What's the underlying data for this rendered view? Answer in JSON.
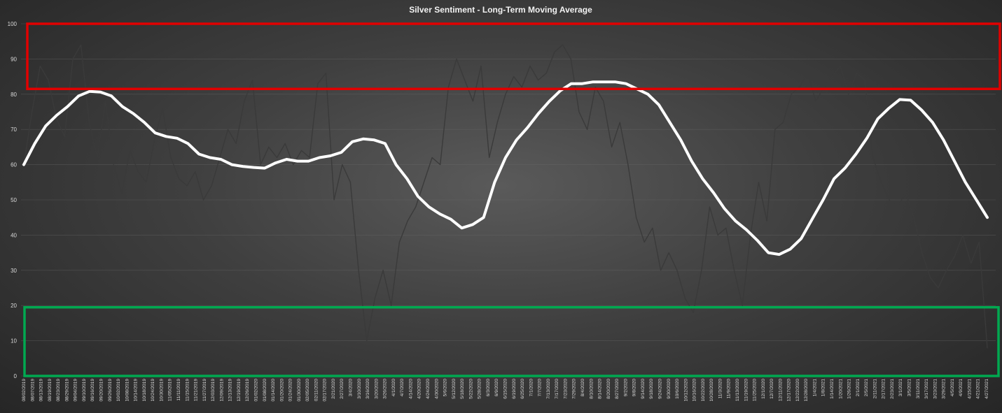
{
  "chart_data": {
    "type": "line",
    "title": "Silver Sentiment - Long-Term Moving Average",
    "xlabel": "",
    "ylabel": "",
    "ylim": [
      0,
      100
    ],
    "yticks": [
      0,
      10,
      20,
      30,
      40,
      50,
      60,
      70,
      80,
      90,
      100
    ],
    "grid": true,
    "legend": "none",
    "x_tick_labels": [
      "08/02/2019",
      "08/07/2019",
      "08/13/2019",
      "08/19/2019",
      "08/23/2019",
      "08/29/2019",
      "09/04/2019",
      "09/10/2019",
      "09/16/2019",
      "09/20/2019",
      "09/26/2019",
      "10/02/2019",
      "10/08/2019",
      "10/14/2019",
      "10/18/2019",
      "10/24/2019",
      "10/30/2019",
      "11/05/2019",
      "11/11/2019",
      "11/15/2019",
      "11/21/2019",
      "11/27/2019",
      "12/03/2019",
      "12/09/2019",
      "12/13/2019",
      "12/19/2019",
      "12/26/2019",
      "01/02/2020",
      "01/08/2020",
      "01/14/2020",
      "01/20/2020",
      "01/24/2020",
      "01/30/2020",
      "02/05/2020",
      "02/11/2020",
      "02/17/2020",
      "2/21/2020",
      "2/27/2020",
      "3/4/2020",
      "3/10/2020",
      "3/16/2020",
      "3/20/2020",
      "3/26/2020",
      "4/1/2020",
      "4/7/2020",
      "4/14/2020",
      "4/20/2020",
      "4/24/2020",
      "4/30/2020",
      "5/6/2020",
      "5/12/2020",
      "5/18/2020",
      "5/22/2020",
      "5/28/2020",
      "6/3/2020",
      "6/9/2020",
      "6/15/2020",
      "6/19/2020",
      "6/25/2020",
      "7/1/2020",
      "7/7/2020",
      "7/13/2020",
      "7/17/2020",
      "7/23/2020",
      "7/29/2020",
      "8/4/2020",
      "8/10/2020",
      "8/14/2020",
      "8/20/2020",
      "8/27/2020",
      "9/2/2020",
      "9/8/2020",
      "9/14/2020",
      "9/18/2020",
      "9/24/2020",
      "9/30/2020",
      "10/6/2020",
      "10/12/2020",
      "10/16/2020",
      "10/22/2020",
      "10/28/2020",
      "11/3/2020",
      "11/9/2020",
      "11/13/2020",
      "11/19/2020",
      "11/25/2020",
      "12/1/2020",
      "12/7/2020",
      "12/11/2020",
      "12/17/2020",
      "12/22/2020",
      "12/28/2020",
      "1/4/2021",
      "1/8/2021",
      "1/14/2021",
      "1/20/2021",
      "1/26/2021",
      "2/1/2021",
      "2/5/2021",
      "2/11/2021",
      "2/17/2021",
      "2/23/2021",
      "3/1/2021",
      "3/5/2021",
      "3/11/2021",
      "3/17/2021",
      "3/23/2021",
      "3/29/2021",
      "4/5/2021",
      "4/9/2021",
      "4/15/2021",
      "4/21/2021",
      "4/27/2021"
    ],
    "series": [
      {
        "role": "moving_average",
        "color": "#ffffff",
        "values": [
          60,
          66,
          71,
          74,
          76.5,
          79.5,
          80.8,
          80.6,
          79.5,
          76.5,
          74.5,
          72,
          69,
          68,
          67.5,
          66,
          63,
          62,
          61.5,
          60,
          59.5,
          59.2,
          59,
          60.5,
          61.5,
          61,
          61,
          62,
          62.5,
          63.5,
          66.5,
          67.3,
          67,
          66,
          60,
          56,
          51,
          48,
          46,
          44.5,
          42,
          43,
          45,
          55,
          62,
          67,
          70.5,
          74.5,
          78,
          81,
          83,
          83,
          83.5,
          83.5,
          83.5,
          83,
          81.5,
          80,
          77,
          72,
          67,
          61,
          56,
          52,
          47.5,
          44,
          41.5,
          38.5,
          35,
          34.5,
          36,
          39,
          44.5,
          50,
          56,
          59,
          63,
          67.5,
          73,
          76,
          78.5,
          78.3,
          75.5,
          72,
          67,
          61,
          55,
          50,
          45
        ]
      },
      {
        "role": "daily_sentiment",
        "color": "#3a3a3a",
        "values": [
          60,
          75,
          88,
          84,
          73,
          68,
          90,
          94,
          72,
          62,
          78,
          60,
          52,
          64,
          58,
          55,
          67,
          76,
          62,
          56,
          54,
          58,
          50,
          54,
          62,
          70,
          66,
          78,
          84,
          60,
          65,
          62,
          66,
          60,
          64,
          62,
          83,
          86,
          50,
          60,
          55,
          30,
          10,
          22,
          30,
          20,
          38,
          44,
          48,
          55,
          62,
          60,
          82,
          90,
          84,
          78,
          88,
          62,
          72,
          80,
          85,
          82,
          88,
          84,
          86,
          92,
          94,
          90,
          75,
          70,
          82,
          78,
          65,
          72,
          60,
          45,
          38,
          42,
          30,
          35,
          30,
          22,
          18,
          30,
          48,
          40,
          42,
          30,
          20,
          40,
          55,
          44,
          70,
          72,
          80,
          82,
          86,
          78,
          82,
          85,
          88,
          80,
          86,
          84,
          62,
          55,
          50,
          48,
          52,
          45,
          35,
          28,
          25,
          30,
          34,
          40,
          32,
          38,
          8
        ]
      }
    ],
    "annotations": [
      {
        "type": "box",
        "color": "#e10000",
        "ymin": 81.5,
        "ymax": 100
      },
      {
        "type": "box",
        "color": "#00a850",
        "ymin": 0,
        "ymax": 19.5
      }
    ]
  }
}
